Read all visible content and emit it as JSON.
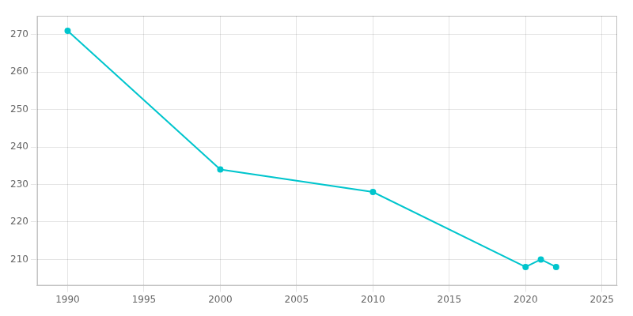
{
  "chart_data": {
    "type": "line",
    "x": [
      1990,
      2000,
      2010,
      2020,
      2021,
      2022
    ],
    "values": [
      271,
      234,
      228,
      208,
      210,
      208
    ],
    "color": "#00c5cd",
    "marker": "circle",
    "xlim": [
      1988,
      2026
    ],
    "ylim": [
      203,
      275
    ],
    "xticks": [
      1990,
      1995,
      2000,
      2005,
      2010,
      2015,
      2020,
      2025
    ],
    "yticks": [
      210,
      220,
      230,
      240,
      250,
      260,
      270
    ],
    "grid": true
  }
}
